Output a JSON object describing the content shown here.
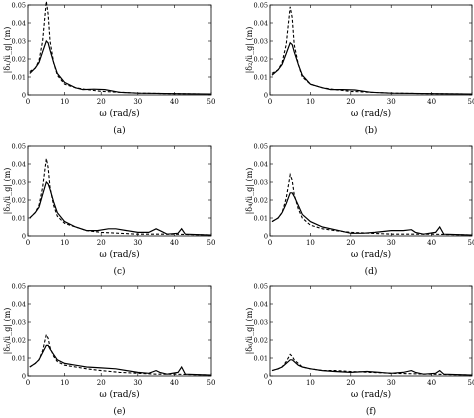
{
  "chart_data": [
    {
      "type": "line",
      "panel": "(a)",
      "xlabel": "ω (rad/s)",
      "ylabel": "|δ₁/ü_g| (m)",
      "xlim": [
        0,
        50
      ],
      "ylim": [
        0,
        0.05
      ],
      "xticks": [
        0,
        10,
        20,
        30,
        40,
        50
      ],
      "yticks": [
        0,
        0.01,
        0.02,
        0.03,
        0.04,
        0.05
      ],
      "series": [
        {
          "style": "dashed",
          "points": [
            [
              0.5,
              0.013
            ],
            [
              2,
              0.015
            ],
            [
              3,
              0.019
            ],
            [
              4,
              0.03
            ],
            [
              5,
              0.052
            ],
            [
              5.5,
              0.045
            ],
            [
              6,
              0.03
            ],
            [
              7,
              0.018
            ],
            [
              8,
              0.011
            ],
            [
              10,
              0.006
            ],
            [
              13,
              0.004
            ],
            [
              16,
              0.003
            ],
            [
              20,
              0.002
            ],
            [
              25,
              0.0015
            ],
            [
              30,
              0.001
            ],
            [
              40,
              0.0007
            ],
            [
              50,
              0.0005
            ]
          ]
        },
        {
          "style": "solid",
          "points": [
            [
              0.5,
              0.012
            ],
            [
              2,
              0.015
            ],
            [
              3,
              0.018
            ],
            [
              4,
              0.024
            ],
            [
              5,
              0.03
            ],
            [
              5.5,
              0.029
            ],
            [
              6,
              0.025
            ],
            [
              7,
              0.018
            ],
            [
              8,
              0.012
            ],
            [
              10,
              0.007
            ],
            [
              13,
              0.004
            ],
            [
              15,
              0.003
            ],
            [
              18,
              0.0032
            ],
            [
              21,
              0.003
            ],
            [
              25,
              0.0015
            ],
            [
              30,
              0.001
            ],
            [
              40,
              0.0007
            ],
            [
              50,
              0.0005
            ]
          ]
        }
      ]
    },
    {
      "type": "line",
      "panel": "(b)",
      "xlabel": "ω (rad/s)",
      "ylabel": "|δ₂/ü_g| (m)",
      "xlim": [
        0,
        50
      ],
      "ylim": [
        0,
        0.05
      ],
      "xticks": [
        0,
        10,
        20,
        30,
        40,
        50
      ],
      "yticks": [
        0,
        0.01,
        0.02,
        0.03,
        0.04,
        0.05
      ],
      "series": [
        {
          "style": "dashed",
          "points": [
            [
              0.5,
              0.012
            ],
            [
              2,
              0.014
            ],
            [
              3,
              0.018
            ],
            [
              4,
              0.028
            ],
            [
              5,
              0.049
            ],
            [
              5.5,
              0.043
            ],
            [
              6,
              0.028
            ],
            [
              7,
              0.017
            ],
            [
              8,
              0.01
            ],
            [
              10,
              0.006
            ],
            [
              13,
              0.004
            ],
            [
              16,
              0.003
            ],
            [
              20,
              0.002
            ],
            [
              25,
              0.0015
            ],
            [
              30,
              0.001
            ],
            [
              40,
              0.0007
            ],
            [
              50,
              0.0005
            ]
          ]
        },
        {
          "style": "solid",
          "points": [
            [
              0.5,
              0.011
            ],
            [
              2,
              0.014
            ],
            [
              3,
              0.017
            ],
            [
              4,
              0.023
            ],
            [
              5,
              0.029
            ],
            [
              5.5,
              0.028
            ],
            [
              6,
              0.024
            ],
            [
              7,
              0.017
            ],
            [
              8,
              0.011
            ],
            [
              10,
              0.006
            ],
            [
              13,
              0.004
            ],
            [
              15,
              0.003
            ],
            [
              18,
              0.003
            ],
            [
              21,
              0.0028
            ],
            [
              25,
              0.0015
            ],
            [
              30,
              0.001
            ],
            [
              40,
              0.0007
            ],
            [
              50,
              0.0005
            ]
          ]
        }
      ]
    },
    {
      "type": "line",
      "panel": "(c)",
      "xlabel": "ω (rad/s)",
      "ylabel": "|δ₃/ü_g| (m)",
      "xlim": [
        0,
        50
      ],
      "ylim": [
        0,
        0.05
      ],
      "xticks": [
        0,
        10,
        20,
        30,
        40,
        50
      ],
      "yticks": [
        0,
        0.01,
        0.02,
        0.03,
        0.04,
        0.05
      ],
      "series": [
        {
          "style": "dashed",
          "points": [
            [
              0.5,
              0.01
            ],
            [
              2,
              0.013
            ],
            [
              3,
              0.017
            ],
            [
              4,
              0.027
            ],
            [
              5,
              0.043
            ],
            [
              5.5,
              0.038
            ],
            [
              6,
              0.027
            ],
            [
              7,
              0.017
            ],
            [
              8,
              0.011
            ],
            [
              10,
              0.007
            ],
            [
              13,
              0.005
            ],
            [
              16,
              0.003
            ],
            [
              20,
              0.002
            ],
            [
              25,
              0.0015
            ],
            [
              30,
              0.001
            ],
            [
              35,
              0.001
            ],
            [
              40,
              0.001
            ],
            [
              50,
              0.0005
            ]
          ]
        },
        {
          "style": "solid",
          "points": [
            [
              0.5,
              0.01
            ],
            [
              2,
              0.013
            ],
            [
              3,
              0.016
            ],
            [
              4,
              0.023
            ],
            [
              5,
              0.03
            ],
            [
              5.5,
              0.029
            ],
            [
              6,
              0.026
            ],
            [
              7,
              0.019
            ],
            [
              8,
              0.013
            ],
            [
              10,
              0.008
            ],
            [
              13,
              0.005
            ],
            [
              16,
              0.003
            ],
            [
              19,
              0.003
            ],
            [
              22,
              0.004
            ],
            [
              24,
              0.004
            ],
            [
              27,
              0.003
            ],
            [
              30,
              0.002
            ],
            [
              33,
              0.002
            ],
            [
              35,
              0.004
            ],
            [
              36,
              0.003
            ],
            [
              38,
              0.001
            ],
            [
              41,
              0.0015
            ],
            [
              42,
              0.004
            ],
            [
              43,
              0.001
            ],
            [
              50,
              0.0005
            ]
          ]
        }
      ]
    },
    {
      "type": "line",
      "panel": "(d)",
      "xlabel": "ω (rad/s)",
      "ylabel": "|δ₄/ü_g| (m)",
      "xlim": [
        0,
        50
      ],
      "ylim": [
        0,
        0.05
      ],
      "xticks": [
        0,
        10,
        20,
        30,
        40,
        50
      ],
      "yticks": [
        0,
        0.01,
        0.02,
        0.03,
        0.04,
        0.05
      ],
      "series": [
        {
          "style": "dashed",
          "points": [
            [
              0.5,
              0.008
            ],
            [
              2,
              0.01
            ],
            [
              3,
              0.013
            ],
            [
              4,
              0.021
            ],
            [
              5,
              0.034
            ],
            [
              5.5,
              0.031
            ],
            [
              6,
              0.023
            ],
            [
              7,
              0.015
            ],
            [
              8,
              0.01
            ],
            [
              10,
              0.006
            ],
            [
              13,
              0.004
            ],
            [
              16,
              0.003
            ],
            [
              20,
              0.002
            ],
            [
              25,
              0.0015
            ],
            [
              30,
              0.001
            ],
            [
              40,
              0.001
            ],
            [
              50,
              0.0005
            ]
          ]
        },
        {
          "style": "solid",
          "points": [
            [
              0.5,
              0.008
            ],
            [
              2,
              0.01
            ],
            [
              3,
              0.013
            ],
            [
              4,
              0.018
            ],
            [
              5,
              0.024
            ],
            [
              5.5,
              0.024
            ],
            [
              6,
              0.022
            ],
            [
              7,
              0.017
            ],
            [
              8,
              0.012
            ],
            [
              10,
              0.008
            ],
            [
              13,
              0.005
            ],
            [
              17,
              0.003
            ],
            [
              20,
              0.0015
            ],
            [
              23,
              0.0015
            ],
            [
              26,
              0.002
            ],
            [
              30,
              0.003
            ],
            [
              33,
              0.003
            ],
            [
              35,
              0.0035
            ],
            [
              36,
              0.002
            ],
            [
              38,
              0.001
            ],
            [
              41,
              0.002
            ],
            [
              42,
              0.005
            ],
            [
              43,
              0.001
            ],
            [
              50,
              0.0005
            ]
          ]
        }
      ]
    },
    {
      "type": "line",
      "panel": "(e)",
      "xlabel": "ω (rad/s)",
      "ylabel": "|δ₅/ü_g| (m)",
      "xlim": [
        0,
        50
      ],
      "ylim": [
        0,
        0.05
      ],
      "xticks": [
        0,
        10,
        20,
        30,
        40,
        50
      ],
      "yticks": [
        0,
        0.01,
        0.02,
        0.03,
        0.04,
        0.05
      ],
      "series": [
        {
          "style": "dashed",
          "points": [
            [
              0.5,
              0.005
            ],
            [
              2,
              0.007
            ],
            [
              3,
              0.009
            ],
            [
              4,
              0.014
            ],
            [
              5,
              0.023
            ],
            [
              5.5,
              0.021
            ],
            [
              6,
              0.016
            ],
            [
              7,
              0.011
            ],
            [
              8,
              0.008
            ],
            [
              10,
              0.006
            ],
            [
              13,
              0.005
            ],
            [
              16,
              0.004
            ],
            [
              20,
              0.003
            ],
            [
              25,
              0.002
            ],
            [
              30,
              0.0015
            ],
            [
              35,
              0.001
            ],
            [
              40,
              0.001
            ],
            [
              50,
              0.0005
            ]
          ]
        },
        {
          "style": "solid",
          "points": [
            [
              0.5,
              0.005
            ],
            [
              2,
              0.007
            ],
            [
              3,
              0.009
            ],
            [
              4,
              0.013
            ],
            [
              5,
              0.017
            ],
            [
              5.5,
              0.017
            ],
            [
              6,
              0.015
            ],
            [
              7,
              0.012
            ],
            [
              8,
              0.009
            ],
            [
              10,
              0.007
            ],
            [
              13,
              0.006
            ],
            [
              16,
              0.005
            ],
            [
              20,
              0.0045
            ],
            [
              24,
              0.004
            ],
            [
              27,
              0.003
            ],
            [
              30,
              0.002
            ],
            [
              33,
              0.0015
            ],
            [
              35,
              0.003
            ],
            [
              36,
              0.002
            ],
            [
              38,
              0.001
            ],
            [
              41,
              0.002
            ],
            [
              42,
              0.005
            ],
            [
              43,
              0.001
            ],
            [
              50,
              0.0005
            ]
          ]
        }
      ]
    },
    {
      "type": "line",
      "panel": "(f)",
      "xlabel": "ω (rad/s)",
      "ylabel": "|δ₆/ü_g| (m)",
      "xlim": [
        0,
        50
      ],
      "ylim": [
        0,
        0.05
      ],
      "xticks": [
        0,
        10,
        20,
        30,
        40,
        50
      ],
      "yticks": [
        0,
        0.01,
        0.02,
        0.03,
        0.04,
        0.05
      ],
      "series": [
        {
          "style": "dashed",
          "points": [
            [
              0.5,
              0.003
            ],
            [
              2,
              0.004
            ],
            [
              3,
              0.005
            ],
            [
              4,
              0.008
            ],
            [
              5,
              0.012
            ],
            [
              5.5,
              0.011
            ],
            [
              6,
              0.009
            ],
            [
              7,
              0.007
            ],
            [
              8,
              0.005
            ],
            [
              10,
              0.004
            ],
            [
              13,
              0.003
            ],
            [
              16,
              0.003
            ],
            [
              20,
              0.0025
            ],
            [
              25,
              0.002
            ],
            [
              30,
              0.0015
            ],
            [
              40,
              0.001
            ],
            [
              50,
              0.0005
            ]
          ]
        },
        {
          "style": "solid",
          "points": [
            [
              0.5,
              0.003
            ],
            [
              2,
              0.004
            ],
            [
              3,
              0.005
            ],
            [
              4,
              0.007
            ],
            [
              5,
              0.009
            ],
            [
              5.5,
              0.009
            ],
            [
              6,
              0.008
            ],
            [
              7,
              0.006
            ],
            [
              8,
              0.005
            ],
            [
              10,
              0.004
            ],
            [
              13,
              0.003
            ],
            [
              16,
              0.0025
            ],
            [
              20,
              0.002
            ],
            [
              24,
              0.0025
            ],
            [
              27,
              0.002
            ],
            [
              30,
              0.0015
            ],
            [
              33,
              0.002
            ],
            [
              35,
              0.003
            ],
            [
              36,
              0.002
            ],
            [
              38,
              0.001
            ],
            [
              41,
              0.0015
            ],
            [
              42,
              0.003
            ],
            [
              43,
              0.001
            ],
            [
              50,
              0.0005
            ]
          ]
        }
      ]
    }
  ]
}
